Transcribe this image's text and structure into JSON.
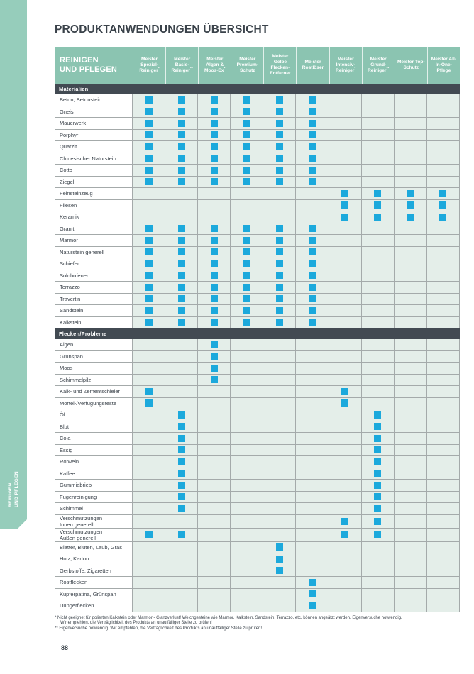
{
  "page": {
    "title": "PRODUKTANWENDUNGEN ÜBERSICHT",
    "page_number": "88"
  },
  "sidebar": {
    "label": "REINIGEN\nUND PFLEGEN"
  },
  "colors": {
    "sidebar_green": "#96CDBB",
    "header_green": "#8BC4B1",
    "section_dark": "#424A52",
    "check_blue": "#1CA9DC",
    "cell_background": "#E4EEE9",
    "grid_line": "#A4AAAA",
    "text_dark": "#3A424A"
  },
  "table": {
    "corner_header": "REINIGEN\nUND PFLEGEN",
    "columns": [
      {
        "label": "Meister Spezial-Reiniger",
        "mark": "*"
      },
      {
        "label": "Meister Basis-Reiniger",
        "mark": "**"
      },
      {
        "label": "Meister Algen & Moos-Ex",
        "mark": "*"
      },
      {
        "label": "Meister Premium-Schutz",
        "mark": ""
      },
      {
        "label": "Meister Gelbe Flecken-Entferner",
        "mark": ""
      },
      {
        "label": "Meister Rostlöser",
        "mark": ""
      },
      {
        "label": "Meister Intensiv-Reiniger",
        "mark": "*"
      },
      {
        "label": "Meister Grund-Reiniger",
        "mark": "**"
      },
      {
        "label": "Meister Top-Schutz",
        "mark": ""
      },
      {
        "label": "Meister All-In-One-Pflege",
        "mark": ""
      }
    ],
    "sections": [
      {
        "title": "Materialien",
        "rows": [
          {
            "label": "Beton, Betonstein",
            "checks": [
              1,
              2,
              3,
              4,
              5,
              6
            ]
          },
          {
            "label": "Gneis",
            "checks": [
              1,
              2,
              3,
              4,
              5,
              6
            ]
          },
          {
            "label": "Mauerwerk",
            "checks": [
              1,
              2,
              3,
              4,
              5,
              6
            ]
          },
          {
            "label": "Porphyr",
            "checks": [
              1,
              2,
              3,
              4,
              5,
              6
            ]
          },
          {
            "label": "Quarzit",
            "checks": [
              1,
              2,
              3,
              4,
              5,
              6
            ]
          },
          {
            "label": "Chinesischer Naturstein",
            "checks": [
              1,
              2,
              3,
              4,
              5,
              6
            ]
          },
          {
            "label": "Cotto",
            "checks": [
              1,
              2,
              3,
              4,
              5,
              6
            ]
          },
          {
            "label": "Ziegel",
            "checks": [
              1,
              2,
              3,
              4,
              5,
              6
            ]
          },
          {
            "label": "Feinsteinzeug",
            "checks": [
              7,
              8,
              9,
              10
            ]
          },
          {
            "label": "Fliesen",
            "checks": [
              7,
              8,
              9,
              10
            ]
          },
          {
            "label": "Keramik",
            "checks": [
              7,
              8,
              9,
              10
            ]
          },
          {
            "label": "Granit",
            "checks": [
              1,
              2,
              3,
              4,
              5,
              6
            ]
          },
          {
            "label": "Marmor",
            "checks": [
              1,
              2,
              3,
              4,
              5,
              6
            ]
          },
          {
            "label": "Naturstein generell",
            "checks": [
              1,
              2,
              3,
              4,
              5,
              6
            ]
          },
          {
            "label": "Schiefer",
            "checks": [
              1,
              2,
              3,
              4,
              5,
              6
            ]
          },
          {
            "label": "Solnhofener",
            "checks": [
              1,
              2,
              3,
              4,
              5,
              6
            ]
          },
          {
            "label": "Terrazzo",
            "checks": [
              1,
              2,
              3,
              4,
              5,
              6
            ]
          },
          {
            "label": "Travertin",
            "checks": [
              1,
              2,
              3,
              4,
              5,
              6
            ]
          },
          {
            "label": "Sandstein",
            "checks": [
              1,
              2,
              3,
              4,
              5,
              6
            ]
          },
          {
            "label": "Kalkstein",
            "checks": [
              1,
              2,
              3,
              4,
              5,
              6
            ]
          }
        ]
      },
      {
        "title": "Flecken/Probleme",
        "rows": [
          {
            "label": "Algen",
            "checks": [
              3
            ]
          },
          {
            "label": "Grünspan",
            "checks": [
              3
            ]
          },
          {
            "label": "Moos",
            "checks": [
              3
            ]
          },
          {
            "label": "Schimmelpilz",
            "checks": [
              3
            ]
          },
          {
            "label": "Kalk- und Zementschleier",
            "checks": [
              1,
              7
            ]
          },
          {
            "label": "Mörtel-/Verfugungsreste",
            "checks": [
              1,
              7
            ]
          },
          {
            "label": "Öl",
            "checks": [
              2,
              8
            ]
          },
          {
            "label": "Blut",
            "checks": [
              2,
              8
            ]
          },
          {
            "label": "Cola",
            "checks": [
              2,
              8
            ]
          },
          {
            "label": "Essig",
            "checks": [
              2,
              8
            ]
          },
          {
            "label": "Rotwein",
            "checks": [
              2,
              8
            ]
          },
          {
            "label": "Kaffee",
            "checks": [
              2,
              8
            ]
          },
          {
            "label": "Gummiabrieb",
            "checks": [
              2,
              8
            ]
          },
          {
            "label": "Fugenreinigung",
            "checks": [
              2,
              8
            ]
          },
          {
            "label": "Schimmel",
            "checks": [
              2,
              8
            ]
          },
          {
            "label": "Verschmutzungen\nInnen generell",
            "checks": [
              7,
              8
            ]
          },
          {
            "label": "Verschmutzungen\nAußen generell",
            "checks": [
              1,
              2,
              7,
              8
            ]
          },
          {
            "label": "Blätter, Blüten, Laub, Gras",
            "checks": [
              5
            ]
          },
          {
            "label": "Holz, Karton",
            "checks": [
              5
            ]
          },
          {
            "label": "Gerbstoffe, Zigaretten",
            "checks": [
              5
            ]
          },
          {
            "label": "Rostflecken",
            "checks": [
              6
            ]
          },
          {
            "label": "Kupferpatina, Grünspan",
            "checks": [
              6
            ]
          },
          {
            "label": "Düngerflecken",
            "checks": [
              6
            ]
          }
        ]
      }
    ]
  },
  "footnotes": [
    {
      "marker": "*",
      "text": "Nicht geeignet für polierten Kalkstein oder Marmor - Glanzverlust! Weichgesteine wie Marmor, Kalkstein, Sandstein, Terrazzo, etc. können angeätzt werden. Eigenversuche notwendig.\nWir empfehlen, die Verträglichkeit des Produkts an unauffälliger Stelle zu prüfen!"
    },
    {
      "marker": "**",
      "text": "Eigenversuche notwendig. Wir empfehlen, die Verträglichkeit des Produkts an unauffälliger Stelle zu prüfen!"
    }
  ]
}
